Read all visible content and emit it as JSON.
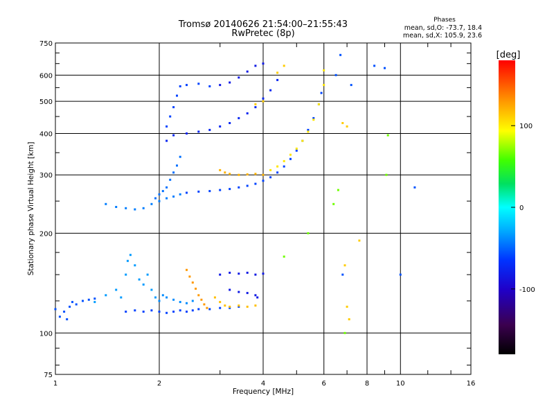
{
  "header": {
    "title": "Tromsø 20140626 21:54:00–21:55:43",
    "subtitle": "RwPretec (8p)",
    "phases_title": "Phases",
    "phases_line1": "mean, sd,O: -73.7, 18.4",
    "phases_line2": "mean, sd,X: 105.9, 23.6"
  },
  "chart_data": {
    "type": "scatter",
    "xlabel": "Frequency [MHz]",
    "ylabel": "Stationary phase Virtual Height [km]",
    "x_scale": "log",
    "y_scale": "log",
    "xlim": [
      1,
      16
    ],
    "ylim": [
      75,
      750
    ],
    "x_ticks": [
      1,
      2,
      4,
      6,
      8,
      10,
      16
    ],
    "x_tick_labels": [
      "1",
      "2",
      "4",
      "6",
      "8",
      "10",
      "16"
    ],
    "x_minor_ticks": [
      3,
      5,
      7,
      9,
      12,
      14
    ],
    "y_ticks": [
      75,
      100,
      200,
      300,
      400,
      500,
      600,
      750
    ],
    "y_tick_labels": [
      "75",
      "100",
      "200",
      "300",
      "400",
      "500",
      "600",
      "750"
    ],
    "y_minor_ticks": [
      80,
      90,
      125,
      150,
      175,
      250,
      350,
      450,
      550,
      650,
      700
    ],
    "grid": true,
    "colorbar": {
      "label": "[deg]",
      "range": [
        -180,
        180
      ],
      "ticks": [
        100,
        0,
        -100
      ],
      "tick_labels": [
        "100",
        "0",
        "-100"
      ]
    },
    "traces": [
      {
        "phase": -90,
        "points": [
          [
            1.0,
            118
          ],
          [
            1.03,
            112
          ],
          [
            1.06,
            116
          ],
          [
            1.08,
            110
          ],
          [
            1.1,
            120
          ],
          [
            1.12,
            124
          ],
          [
            1.15,
            122
          ],
          [
            1.2,
            125
          ],
          [
            1.25,
            126
          ],
          [
            1.3,
            127
          ]
        ]
      },
      {
        "phase": -65,
        "points": [
          [
            1.3,
            124
          ],
          [
            1.4,
            130
          ],
          [
            1.5,
            135
          ],
          [
            1.55,
            128
          ],
          [
            1.6,
            150
          ],
          [
            1.62,
            165
          ],
          [
            1.65,
            172
          ],
          [
            1.7,
            160
          ],
          [
            1.75,
            145
          ],
          [
            1.8,
            140
          ],
          [
            1.85,
            150
          ],
          [
            1.9,
            135
          ],
          [
            1.95,
            128
          ],
          [
            2.0,
            125
          ]
        ]
      },
      {
        "phase": -95,
        "points": [
          [
            1.6,
            116
          ],
          [
            1.7,
            117
          ],
          [
            1.8,
            116
          ],
          [
            1.9,
            117
          ],
          [
            2.0,
            116
          ],
          [
            2.1,
            115
          ],
          [
            2.2,
            116
          ],
          [
            2.3,
            117
          ],
          [
            2.4,
            116
          ],
          [
            2.5,
            117
          ],
          [
            2.6,
            118
          ],
          [
            2.8,
            118
          ],
          [
            3.0,
            119
          ],
          [
            3.2,
            119
          ],
          [
            3.4,
            120
          ]
        ]
      },
      {
        "phase": -70,
        "points": [
          [
            2.0,
            125
          ],
          [
            2.05,
            130
          ],
          [
            2.1,
            128
          ],
          [
            2.2,
            126
          ],
          [
            2.3,
            124
          ],
          [
            2.4,
            123
          ],
          [
            2.5,
            125
          ]
        ]
      },
      {
        "phase": 140,
        "points": [
          [
            2.4,
            155
          ],
          [
            2.45,
            148
          ],
          [
            2.5,
            142
          ],
          [
            2.55,
            136
          ],
          [
            2.6,
            130
          ],
          [
            2.65,
            126
          ],
          [
            2.7,
            122
          ],
          [
            2.75,
            119
          ]
        ]
      },
      {
        "phase": 125,
        "points": [
          [
            2.9,
            128
          ],
          [
            3.0,
            124
          ],
          [
            3.1,
            121
          ],
          [
            3.2,
            120
          ],
          [
            3.4,
            121
          ],
          [
            3.6,
            120
          ],
          [
            3.8,
            121
          ]
        ]
      },
      {
        "phase": -110,
        "points": [
          [
            3.0,
            150
          ],
          [
            3.2,
            152
          ],
          [
            3.4,
            151
          ],
          [
            3.6,
            152
          ],
          [
            3.8,
            150
          ],
          [
            4.0,
            151
          ]
        ]
      },
      {
        "phase": -110,
        "points": [
          [
            3.2,
            135
          ],
          [
            3.4,
            133
          ],
          [
            3.6,
            132
          ],
          [
            3.8,
            130
          ],
          [
            3.85,
            128
          ]
        ]
      },
      {
        "phase": -75,
        "points": [
          [
            1.4,
            245
          ],
          [
            1.5,
            240
          ],
          [
            1.6,
            238
          ],
          [
            1.7,
            236
          ],
          [
            1.8,
            238
          ],
          [
            1.9,
            245
          ],
          [
            2.0,
            250
          ],
          [
            2.1,
            255
          ],
          [
            2.2,
            258
          ],
          [
            2.3,
            262
          ],
          [
            2.4,
            265
          ]
        ]
      },
      {
        "phase": -80,
        "points": [
          [
            1.95,
            255
          ],
          [
            2.0,
            262
          ],
          [
            2.05,
            268
          ],
          [
            2.1,
            275
          ],
          [
            2.15,
            290
          ],
          [
            2.2,
            305
          ],
          [
            2.25,
            320
          ],
          [
            2.3,
            340
          ]
        ]
      },
      {
        "phase": -95,
        "points": [
          [
            2.4,
            265
          ],
          [
            2.6,
            267
          ],
          [
            2.8,
            268
          ],
          [
            3.0,
            270
          ],
          [
            3.2,
            272
          ],
          [
            3.4,
            275
          ],
          [
            3.6,
            278
          ],
          [
            3.8,
            282
          ],
          [
            4.0,
            288
          ],
          [
            4.2,
            295
          ],
          [
            4.4,
            305
          ],
          [
            4.6,
            318
          ],
          [
            4.8,
            335
          ],
          [
            5.0,
            355
          ],
          [
            5.2,
            380
          ],
          [
            5.4,
            410
          ],
          [
            5.6,
            445
          ],
          [
            5.8,
            490
          ],
          [
            5.9,
            530
          ]
        ]
      },
      {
        "phase": 130,
        "points": [
          [
            3.0,
            310
          ],
          [
            3.1,
            305
          ],
          [
            3.2,
            302
          ],
          [
            3.4,
            300
          ],
          [
            3.6,
            301
          ],
          [
            3.8,
            302
          ],
          [
            4.0,
            300
          ]
        ]
      },
      {
        "phase": 110,
        "points": [
          [
            4.2,
            310
          ],
          [
            4.4,
            318
          ],
          [
            4.6,
            330
          ],
          [
            4.8,
            345
          ],
          [
            5.0,
            360
          ],
          [
            5.2,
            380
          ],
          [
            5.4,
            405
          ],
          [
            5.6,
            440
          ],
          [
            5.8,
            490
          ],
          [
            6.0,
            560
          ],
          [
            6.0,
            620
          ]
        ]
      },
      {
        "phase": -105,
        "points": [
          [
            2.1,
            380
          ],
          [
            2.2,
            395
          ],
          [
            2.4,
            400
          ],
          [
            2.6,
            405
          ],
          [
            2.8,
            410
          ],
          [
            3.0,
            420
          ],
          [
            3.2,
            430
          ],
          [
            3.4,
            445
          ],
          [
            3.6,
            460
          ],
          [
            3.8,
            480
          ],
          [
            4.0,
            510
          ],
          [
            4.2,
            540
          ],
          [
            4.4,
            580
          ]
        ]
      },
      {
        "phase": -95,
        "points": [
          [
            2.1,
            420
          ],
          [
            2.15,
            450
          ],
          [
            2.2,
            480
          ],
          [
            2.25,
            520
          ],
          [
            2.3,
            555
          ],
          [
            2.4,
            560
          ],
          [
            2.6,
            565
          ],
          [
            2.8,
            555
          ]
        ]
      },
      {
        "phase": -110,
        "points": [
          [
            3.0,
            560
          ],
          [
            3.2,
            570
          ],
          [
            3.4,
            590
          ],
          [
            3.6,
            615
          ],
          [
            3.8,
            640
          ],
          [
            4.0,
            650
          ]
        ]
      },
      {
        "phase": 120,
        "points": [
          [
            3.8,
            490
          ],
          [
            4.0,
            500
          ],
          [
            4.4,
            610
          ],
          [
            4.6,
            640
          ]
        ]
      },
      {
        "phase": 120,
        "points": [
          [
            6.8,
            430
          ],
          [
            7.0,
            420
          ],
          [
            6.9,
            160
          ],
          [
            7.0,
            120
          ],
          [
            7.1,
            110
          ],
          [
            7.6,
            190
          ]
        ]
      },
      {
        "phase": -90,
        "points": [
          [
            6.7,
            690
          ],
          [
            6.5,
            600
          ],
          [
            7.2,
            560
          ],
          [
            8.4,
            640
          ],
          [
            9.0,
            630
          ],
          [
            11.0,
            275
          ],
          [
            10.0,
            150
          ],
          [
            6.8,
            150
          ]
        ]
      },
      {
        "phase": 70,
        "points": [
          [
            6.6,
            270
          ],
          [
            6.9,
            100
          ],
          [
            9.2,
            395
          ],
          [
            9.1,
            300
          ],
          [
            5.4,
            200
          ],
          [
            4.6,
            170
          ],
          [
            6.4,
            245
          ]
        ]
      }
    ]
  }
}
